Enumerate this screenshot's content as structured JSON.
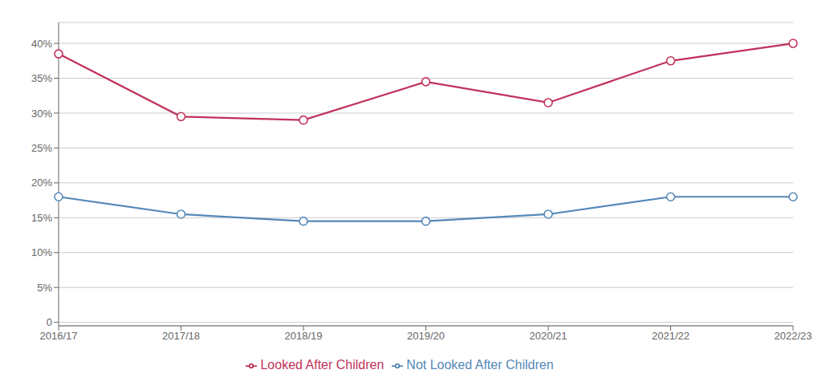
{
  "chart_data": {
    "type": "line",
    "categories": [
      "2016/17",
      "2017/18",
      "2018/19",
      "2019/20",
      "2020/21",
      "2021/22",
      "2022/23"
    ],
    "series": [
      {
        "name": "Looked After Children",
        "color": "#c0325a",
        "values": [
          38.5,
          29.5,
          29.0,
          34.5,
          31.5,
          37.5,
          40.0
        ],
        "marker": "o",
        "line_style": "solid"
      },
      {
        "name": "Not Looked After Children",
        "color": "#5588b8",
        "values": [
          18.0,
          15.5,
          14.5,
          14.5,
          15.5,
          18.0,
          18.0
        ],
        "marker": "o",
        "line_style": "solid"
      }
    ],
    "ylim": [
      -0.5,
      43
    ],
    "yticks": [
      0,
      {
        "value": 5,
        "label": "5%"
      },
      {
        "value": 10,
        "label": "10%"
      },
      {
        "value": 15,
        "label": "15%"
      },
      {
        "value": 20,
        "label": "20%"
      },
      {
        "value": 25,
        "label": "25%"
      },
      {
        "value": 30,
        "label": "30%"
      },
      {
        "value": 35,
        "label": "35%"
      },
      {
        "value": 40,
        "label": "40%"
      }
    ],
    "grid": true,
    "legend": "bottom"
  }
}
